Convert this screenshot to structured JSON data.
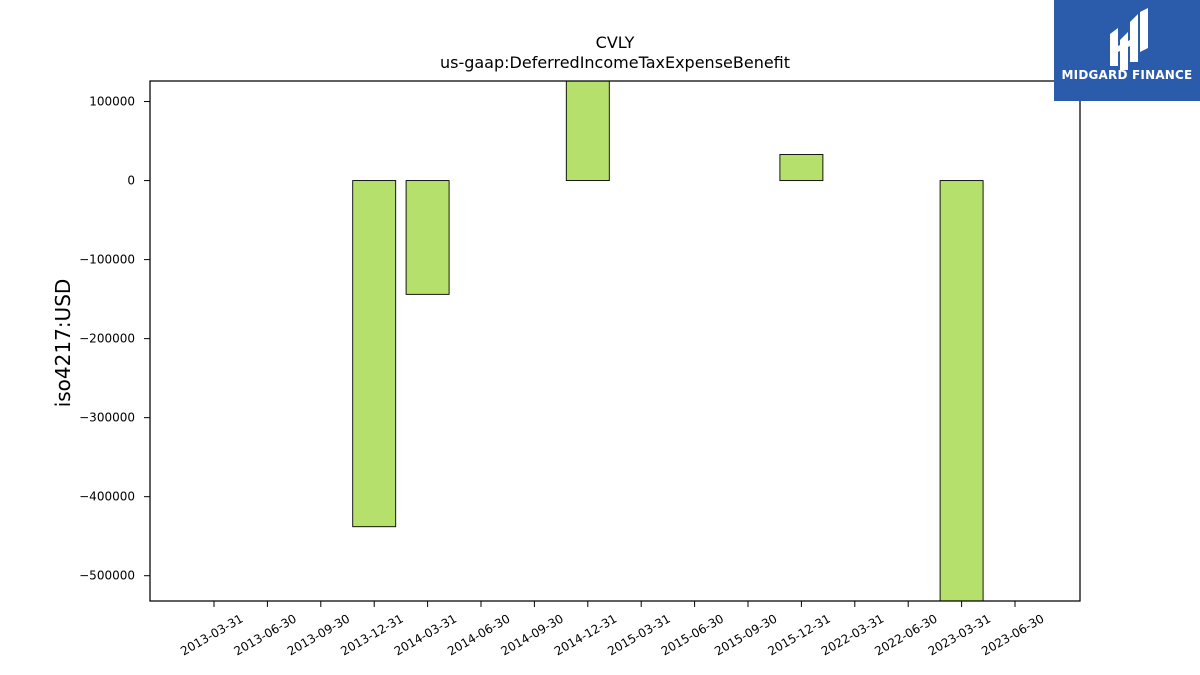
{
  "chart_data": {
    "type": "bar",
    "title": "CVLY",
    "subtitle": "us-gaap:DeferredIncomeTaxExpenseBenefit",
    "ylabel": "iso4217:USD",
    "xlabel": "",
    "categories": [
      "2013-03-31",
      "2013-06-30",
      "2013-09-30",
      "2013-12-31",
      "2014-03-31",
      "2014-06-30",
      "2014-09-30",
      "2014-12-31",
      "2015-03-31",
      "2015-06-30",
      "2015-09-30",
      "2015-12-31",
      "2022-03-31",
      "2022-06-30",
      "2023-03-31",
      "2023-06-30"
    ],
    "values": [
      0,
      0,
      0,
      -438000,
      -144000,
      0,
      0,
      127000,
      0,
      0,
      0,
      33000,
      0,
      0,
      -532000,
      0
    ],
    "ylim": [
      -532000,
      126000
    ],
    "yticks": [
      100000,
      0,
      -100000,
      -200000,
      -300000,
      -400000,
      -500000
    ],
    "ytick_labels": [
      "100000",
      "0",
      "−100000",
      "−200000",
      "−300000",
      "−400000",
      "−500000"
    ],
    "grid": false,
    "colors": {
      "bar_fill": "#b5e06b",
      "bar_edge": "#000000",
      "axes": "#000000"
    }
  },
  "logo": {
    "text": "MIDGARD FINANCE",
    "icon": "midgard-logo-mark",
    "background": "#2b5bab",
    "foreground": "#ffffff"
  }
}
